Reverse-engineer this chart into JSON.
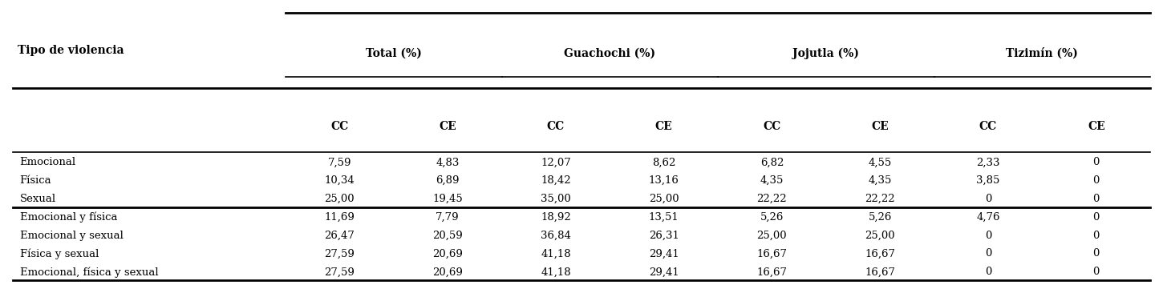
{
  "header_groups": [
    "Total (%)",
    "Guachochi (%)",
    "Jojutla (%)",
    "Tizimín (%)"
  ],
  "sub_headers": [
    "CC",
    "CE",
    "CC",
    "CE",
    "CC",
    "CE",
    "CC",
    "CE"
  ],
  "col0_header": "Tipo de violencia",
  "rows": [
    [
      "Emocional",
      "7,59",
      "4,83",
      "12,07",
      "8,62",
      "6,82",
      "4,55",
      "2,33",
      "0"
    ],
    [
      "Física",
      "10,34",
      "6,89",
      "18,42",
      "13,16",
      "4,35",
      "4,35",
      "3,85",
      "0"
    ],
    [
      "Sexual",
      "25,00",
      "19,45",
      "35,00",
      "25,00",
      "22,22",
      "22,22",
      "0",
      "0"
    ],
    [
      "Emocional y física",
      "11,69",
      "7,79",
      "18,92",
      "13,51",
      "5,26",
      "5,26",
      "4,76",
      "0"
    ],
    [
      "Emocional y sexual",
      "26,47",
      "20,59",
      "36,84",
      "26,31",
      "25,00",
      "25,00",
      "0",
      "0"
    ],
    [
      "Física y sexual",
      "27,59",
      "20,69",
      "41,18",
      "29,41",
      "16,67",
      "16,67",
      "0",
      "0"
    ],
    [
      "Emocional, física y sexual",
      "27,59",
      "20,69",
      "41,18",
      "29,41",
      "16,67",
      "16,67",
      "0",
      "0"
    ]
  ],
  "group_separator_after_row": 2,
  "background_color": "#ffffff",
  "text_color": "#000000",
  "line_color": "#000000",
  "font_size": 9.5,
  "header_font_size": 10.0
}
